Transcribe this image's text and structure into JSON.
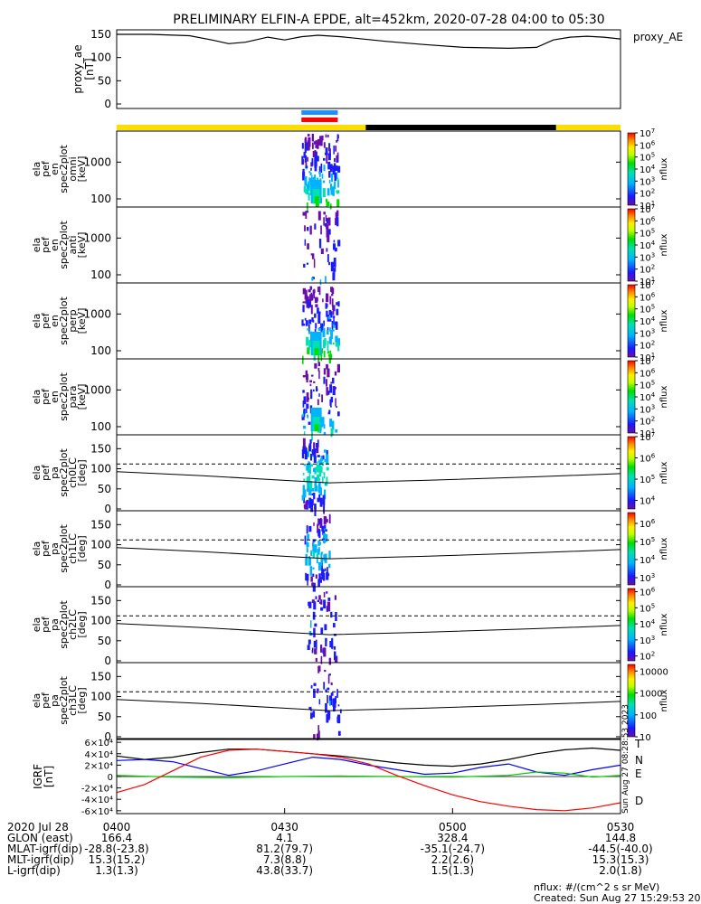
{
  "title": "PRELIMINARY ELFIN-A EPDE, alt=452km, 2020-07-28 04:00 to 05:30",
  "time_axis": {
    "start_min": 0,
    "end_min": 90,
    "ticks": [
      {
        "min": 0,
        "label": "0400"
      },
      {
        "min": 30,
        "label": "0430"
      },
      {
        "min": 60,
        "label": "0500"
      },
      {
        "min": 90,
        "label": "0530"
      }
    ]
  },
  "ephemeris": {
    "rows": [
      {
        "label": "2020 Jul 28",
        "values": [
          "",
          "",
          "",
          ""
        ]
      },
      {
        "label": "GLON (east)",
        "values": [
          "166.4",
          "4.1",
          "328.4",
          "144.8"
        ]
      },
      {
        "label": "MLAT-igrf(dip)",
        "values": [
          "-28.8(-23.8)",
          "81.2(79.7)",
          "-35.1(-24.7)",
          "-44.5(-40.0)"
        ]
      },
      {
        "label": "MLT-igrf(dip)",
        "values": [
          "15.3(15.2)",
          "7.3(8.8)",
          "2.2(2.6)",
          "15.3(15.3)"
        ]
      },
      {
        "label": "L-igrf(dip)",
        "values": [
          "1.3(1.3)",
          "43.8(33.7)",
          "1.5(1.3)",
          "2.0(1.8)"
        ]
      }
    ]
  },
  "footer": {
    "units": "nflux: #/(cm^2 s sr MeV)",
    "created": "Created: Sun Aug 27 15:29:53 2023",
    "side_stamp": "Sun Aug 27 08:28:53 2023"
  },
  "colors": {
    "sunlight_bar": "#ffdd00",
    "eclipse_bar": "#000000",
    "science_blue": "#1f8fff",
    "science_red": "#ff0000"
  },
  "chart_data": [
    {
      "id": "proxy_ae",
      "type": "line",
      "ylabel": "proxy_ae [nT]",
      "legend": "proxy_AE",
      "ylim": [
        0,
        150
      ],
      "yticks": [
        0,
        50,
        100,
        150
      ],
      "x": [
        0,
        6,
        13,
        17,
        20,
        23,
        27,
        30,
        33,
        36,
        40,
        48,
        55,
        62,
        70,
        75,
        78,
        81,
        84,
        87,
        90
      ],
      "y": [
        150,
        150,
        147,
        138,
        130,
        133,
        144,
        138,
        145,
        148,
        145,
        135,
        128,
        122,
        120,
        122,
        138,
        144,
        146,
        144,
        140
      ],
      "line_color": "#000000"
    },
    {
      "id": "status_bars",
      "type": "bar",
      "segments": [
        {
          "from": 0,
          "to": 44.5,
          "state": "sunlight"
        },
        {
          "from": 44.5,
          "to": 78.5,
          "state": "eclipse"
        },
        {
          "from": 78.5,
          "to": 90,
          "state": "sunlight"
        }
      ],
      "science_zone": {
        "from": 33,
        "to": 39.5
      }
    },
    {
      "id": "spec_omni",
      "type": "heatmap",
      "ylabel": "ela pef en spec2plot omni [keV]",
      "yscale": "log",
      "ylim": [
        60,
        7000
      ],
      "yticks": [
        100,
        1000
      ],
      "colorbar_label": "nflux",
      "colorbar_ticks": [
        1,
        2,
        3,
        4,
        5,
        6,
        7
      ],
      "colorbar_range": [
        1,
        7
      ],
      "burst": {
        "from": 33,
        "to": 39.5
      },
      "intensity": 1.0
    },
    {
      "id": "spec_anti",
      "type": "heatmap",
      "ylabel": "ela pef en spec2plot anti [keV]",
      "yscale": "log",
      "ylim": [
        60,
        7000
      ],
      "yticks": [
        100,
        1000
      ],
      "colorbar_label": "nflux",
      "colorbar_ticks": [
        1,
        2,
        3,
        4,
        5,
        6,
        7
      ],
      "colorbar_range": [
        1,
        7
      ],
      "burst": {
        "from": 33,
        "to": 39.5
      },
      "intensity": 0.35
    },
    {
      "id": "spec_perp",
      "type": "heatmap",
      "ylabel": "ela pef en spec2plot perp [keV]",
      "yscale": "log",
      "ylim": [
        60,
        7000
      ],
      "yticks": [
        100,
        1000
      ],
      "colorbar_label": "nflux",
      "colorbar_ticks": [
        1,
        2,
        3,
        4,
        5,
        6,
        7
      ],
      "colorbar_range": [
        1,
        7
      ],
      "burst": {
        "from": 33,
        "to": 39.5
      },
      "intensity": 0.95
    },
    {
      "id": "spec_para",
      "type": "heatmap",
      "ylabel": "ela pef en spec2plot para [keV]",
      "yscale": "log",
      "ylim": [
        60,
        7000
      ],
      "yticks": [
        100,
        1000
      ],
      "colorbar_label": "nflux",
      "colorbar_ticks": [
        1,
        2,
        3,
        4,
        5,
        6,
        7
      ],
      "colorbar_range": [
        1,
        7
      ],
      "burst": {
        "from": 33,
        "to": 39.5
      },
      "intensity": 0.55
    },
    {
      "id": "pa_ch0",
      "type": "heatmap",
      "ylabel": "ela pef pa spec2plot ch0LC [deg]",
      "ylim": [
        0,
        180
      ],
      "yticks": [
        0,
        50,
        100,
        150
      ],
      "colorbar_label": "nflux",
      "colorbar_ticks": [
        4,
        5,
        6,
        7
      ],
      "colorbar_range": [
        3.6,
        7
      ],
      "burst": {
        "from": 33,
        "to": 37.5
      },
      "intensity": 0.8,
      "losscone": [
        93,
        83,
        71,
        65,
        71,
        80,
        88
      ],
      "antilosscone": [
        112,
        112,
        112,
        112,
        112,
        112,
        112
      ],
      "lc_x": [
        0,
        15,
        30,
        38,
        55,
        75,
        90
      ]
    },
    {
      "id": "pa_ch1",
      "type": "heatmap",
      "ylabel": "ela pef pa spec2plot ch1LC [deg]",
      "ylim": [
        0,
        180
      ],
      "yticks": [
        0,
        50,
        100,
        150
      ],
      "colorbar_label": "nflux",
      "colorbar_ticks": [
        3,
        4,
        5,
        6
      ],
      "colorbar_range": [
        2.6,
        6.6
      ],
      "burst": {
        "from": 33.5,
        "to": 38
      },
      "intensity": 0.6,
      "losscone": [
        93,
        83,
        71,
        65,
        71,
        80,
        88
      ],
      "antilosscone": [
        112,
        112,
        112,
        112,
        112,
        112,
        112
      ],
      "lc_x": [
        0,
        15,
        30,
        38,
        55,
        75,
        90
      ]
    },
    {
      "id": "pa_ch2",
      "type": "heatmap",
      "ylabel": "ela pef pa spec2plot ch2LC [deg]",
      "ylim": [
        0,
        180
      ],
      "yticks": [
        0,
        50,
        100,
        150
      ],
      "colorbar_label": "nflux",
      "colorbar_ticks": [
        2,
        3,
        4,
        5,
        6
      ],
      "colorbar_range": [
        1.7,
        6.2
      ],
      "burst": {
        "from": 34,
        "to": 39
      },
      "intensity": 0.4,
      "losscone": [
        93,
        83,
        71,
        65,
        71,
        80,
        88
      ],
      "antilosscone": [
        112,
        112,
        112,
        112,
        112,
        112,
        112
      ],
      "lc_x": [
        0,
        15,
        30,
        38,
        55,
        75,
        90
      ]
    },
    {
      "id": "pa_ch3",
      "type": "heatmap",
      "ylabel": "ela pef pa spec2plot ch3LC [deg]",
      "ylim": [
        0,
        180
      ],
      "yticks": [
        0,
        50,
        100,
        150
      ],
      "colorbar_label": "nflux",
      "colorbar_ticks": [
        "10",
        "100",
        "1000",
        "10000"
      ],
      "colorbar_range": [
        1,
        4.3
      ],
      "burst": {
        "from": 34,
        "to": 40
      },
      "intensity": 0.3,
      "losscone": [
        93,
        83,
        71,
        65,
        71,
        80,
        88
      ],
      "antilosscone": [
        112,
        112,
        112,
        112,
        112,
        112,
        112
      ],
      "lc_x": [
        0,
        15,
        30,
        38,
        55,
        75,
        90
      ]
    },
    {
      "id": "igrf",
      "type": "line",
      "ylabel": "IGRF [nT]",
      "ylim": [
        -65000,
        65000
      ],
      "yticks": [
        -60000,
        -40000,
        -20000,
        0,
        20000,
        40000,
        60000
      ],
      "ytick_labels": [
        "-6×10⁴",
        "-4×10⁴",
        "-2×10⁴",
        "0",
        "2×10⁴",
        "4×10⁴",
        "6×10⁴"
      ],
      "series": [
        {
          "name": "T",
          "color": "#000000",
          "x": [
            0,
            5,
            10,
            15,
            20,
            25,
            30,
            35,
            40,
            45,
            50,
            55,
            60,
            65,
            70,
            75,
            80,
            85,
            90
          ],
          "y": [
            36000,
            30000,
            34000,
            42000,
            48000,
            48000,
            44000,
            40000,
            36000,
            30000,
            24000,
            20000,
            18000,
            22000,
            30000,
            40000,
            47000,
            50000,
            46000
          ]
        },
        {
          "name": "N",
          "color": "#0000ff",
          "x": [
            0,
            5,
            10,
            15,
            20,
            25,
            30,
            35,
            40,
            45,
            50,
            55,
            60,
            65,
            70,
            75,
            80,
            85,
            90
          ],
          "y": [
            28000,
            30000,
            26000,
            14000,
            2000,
            10000,
            22000,
            34000,
            30000,
            20000,
            12000,
            4000,
            6000,
            16000,
            22000,
            8000,
            2000,
            12000,
            20000
          ]
        },
        {
          "name": "E",
          "color": "#00cc00",
          "x": [
            0,
            10,
            20,
            30,
            40,
            50,
            60,
            70,
            75,
            80,
            85,
            90
          ],
          "y": [
            2000,
            -1000,
            -2000,
            0,
            1000,
            0,
            -1000,
            2000,
            8000,
            6000,
            -1000,
            2000
          ]
        },
        {
          "name": "D",
          "color": "#ff0000",
          "x": [
            0,
            5,
            10,
            15,
            20,
            25,
            30,
            35,
            40,
            45,
            50,
            55,
            60,
            65,
            70,
            75,
            80,
            85,
            90
          ],
          "y": [
            -28000,
            -14000,
            10000,
            34000,
            46000,
            48000,
            44000,
            40000,
            34000,
            22000,
            2000,
            -16000,
            -32000,
            -44000,
            -52000,
            -58000,
            -60000,
            -55000,
            -46000
          ]
        }
      ]
    }
  ]
}
